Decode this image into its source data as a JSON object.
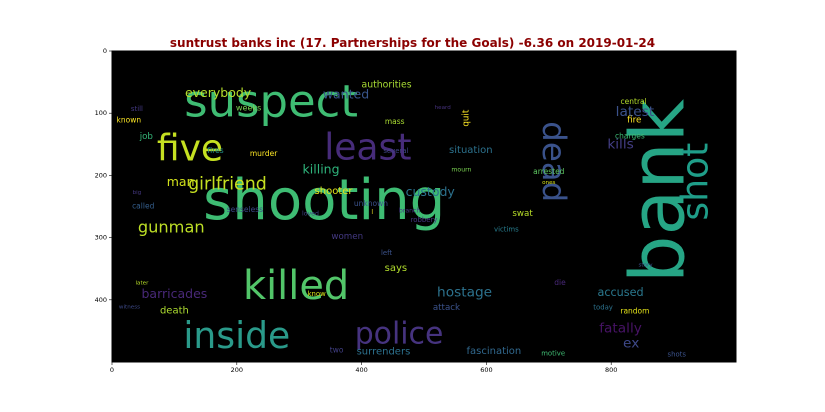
{
  "title": "suntrust banks inc (17. Partnerships for the Goals) -6.36 on 2019-01-24",
  "axes": {
    "x_ticks": [
      "0",
      "200",
      "400",
      "600",
      "800"
    ],
    "y_ticks": [
      "0",
      "100",
      "200",
      "300",
      "400"
    ],
    "x_range": [
      0,
      1000
    ],
    "y_range": [
      0,
      500
    ],
    "background": "#000000"
  },
  "words": [
    {
      "text": "bank",
      "x": 875,
      "y": 225,
      "size": 120,
      "rotate": -90,
      "color": "#26a585"
    },
    {
      "text": "shooting",
      "x": 340,
      "y": 240,
      "size": 90,
      "rotate": 0,
      "color": "#3ebc73"
    },
    {
      "text": "suspect",
      "x": 255,
      "y": 80,
      "size": 72,
      "rotate": 0,
      "color": "#3fbc73"
    },
    {
      "text": "killed",
      "x": 295,
      "y": 378,
      "size": 64,
      "rotate": 0,
      "color": "#52c569"
    },
    {
      "text": "inside",
      "x": 200,
      "y": 458,
      "size": 58,
      "rotate": 0,
      "color": "#2a9a8a"
    },
    {
      "text": "five",
      "x": 125,
      "y": 157,
      "size": 58,
      "rotate": 0,
      "color": "#c5e021"
    },
    {
      "text": "least",
      "x": 410,
      "y": 155,
      "size": 58,
      "rotate": 0,
      "color": "#472c7a"
    },
    {
      "text": "police",
      "x": 460,
      "y": 455,
      "size": 48,
      "rotate": 0,
      "color": "#46337f"
    },
    {
      "text": "dead",
      "x": 708,
      "y": 178,
      "size": 52,
      "rotate": 90,
      "color": "#3a528b"
    },
    {
      "text": "shot",
      "x": 935,
      "y": 210,
      "size": 58,
      "rotate": -90,
      "color": "#1f9e89"
    },
    {
      "text": "girlfriend",
      "x": 185,
      "y": 215,
      "size": 28,
      "rotate": 0,
      "color": "#c5e021"
    },
    {
      "text": "gunman",
      "x": 95,
      "y": 283,
      "size": 26,
      "rotate": 0,
      "color": "#bddf26"
    },
    {
      "text": "everybody",
      "x": 170,
      "y": 67,
      "size": 20,
      "rotate": 0,
      "color": "#b4de2c"
    },
    {
      "text": "man",
      "x": 110,
      "y": 210,
      "size": 20,
      "rotate": 0,
      "color": "#d2e21b"
    },
    {
      "text": "wanted",
      "x": 375,
      "y": 69,
      "size": 20,
      "rotate": 0,
      "color": "#39568c"
    },
    {
      "text": "authorities",
      "x": 440,
      "y": 55,
      "size": 15,
      "rotate": 0,
      "color": "#a8db34"
    },
    {
      "text": "latest",
      "x": 838,
      "y": 98,
      "size": 22,
      "rotate": 0,
      "color": "#3b528b"
    },
    {
      "text": "kills",
      "x": 815,
      "y": 150,
      "size": 22,
      "rotate": 0,
      "color": "#433e85"
    },
    {
      "text": "killing",
      "x": 335,
      "y": 190,
      "size": 20,
      "rotate": 0,
      "color": "#2fb47c"
    },
    {
      "text": "custody",
      "x": 510,
      "y": 226,
      "size": 20,
      "rotate": 0,
      "color": "#2c728e"
    },
    {
      "text": "shooter",
      "x": 355,
      "y": 226,
      "size": 16,
      "rotate": 0,
      "color": "#e5e419"
    },
    {
      "text": "situation",
      "x": 575,
      "y": 160,
      "size": 16,
      "rotate": 0,
      "color": "#2c728e"
    },
    {
      "text": "quit",
      "x": 568,
      "y": 108,
      "size": 14,
      "rotate": -90,
      "color": "#fde725"
    },
    {
      "text": "mass",
      "x": 453,
      "y": 113,
      "size": 12,
      "rotate": 0,
      "color": "#aadc32"
    },
    {
      "text": "fire",
      "x": 837,
      "y": 112,
      "size": 14,
      "rotate": 0,
      "color": "#fde725"
    },
    {
      "text": "central",
      "x": 836,
      "y": 81,
      "size": 12,
      "rotate": 0,
      "color": "#b5de2b"
    },
    {
      "text": "charges",
      "x": 830,
      "y": 137,
      "size": 12,
      "rotate": 0,
      "color": "#3dbc74"
    },
    {
      "text": "weeks",
      "x": 219,
      "y": 91,
      "size": 13,
      "rotate": 0,
      "color": "#7ad151"
    },
    {
      "text": "known",
      "x": 27,
      "y": 111,
      "size": 12,
      "rotate": 0,
      "color": "#fde725"
    },
    {
      "text": "still",
      "x": 40,
      "y": 93,
      "size": 11,
      "rotate": 0,
      "color": "#443983"
    },
    {
      "text": "job",
      "x": 55,
      "y": 138,
      "size": 14,
      "rotate": 0,
      "color": "#35b779"
    },
    {
      "text": "fires",
      "x": 166,
      "y": 160,
      "size": 12,
      "rotate": 0,
      "color": "#21918c"
    },
    {
      "text": "murder",
      "x": 243,
      "y": 165,
      "size": 12,
      "rotate": 0,
      "color": "#fde725"
    },
    {
      "text": "several",
      "x": 455,
      "y": 161,
      "size": 11,
      "rotate": 0,
      "color": "#414487"
    },
    {
      "text": "heard",
      "x": 530,
      "y": 92,
      "size": 9,
      "rotate": 0,
      "color": "#46327e"
    },
    {
      "text": "mourn",
      "x": 560,
      "y": 191,
      "size": 10,
      "rotate": 0,
      "color": "#7ad151"
    },
    {
      "text": "arrested",
      "x": 700,
      "y": 194,
      "size": 12,
      "rotate": 0,
      "color": "#5ec962"
    },
    {
      "text": "ones",
      "x": 700,
      "y": 212,
      "size": 9,
      "rotate": 0,
      "color": "#d8e219"
    },
    {
      "text": "swat",
      "x": 658,
      "y": 262,
      "size": 14,
      "rotate": 0,
      "color": "#b8de29"
    },
    {
      "text": "victims",
      "x": 632,
      "y": 287,
      "size": 11,
      "rotate": 0,
      "color": "#287d8e"
    },
    {
      "text": "unknown",
      "x": 415,
      "y": 245,
      "size": 12,
      "rotate": 0,
      "color": "#3b528b"
    },
    {
      "text": "branch",
      "x": 477,
      "y": 257,
      "size": 10,
      "rotate": 0,
      "color": "#443983"
    },
    {
      "text": "l",
      "x": 417,
      "y": 260,
      "size": 10,
      "rotate": 0,
      "color": "#fde725"
    },
    {
      "text": "loved",
      "x": 318,
      "y": 262,
      "size": 10,
      "rotate": 0,
      "color": "#414487"
    },
    {
      "text": "senseless",
      "x": 213,
      "y": 255,
      "size": 12,
      "rotate": 0,
      "color": "#3e4989"
    },
    {
      "text": "called",
      "x": 50,
      "y": 249,
      "size": 12,
      "rotate": 0,
      "color": "#355f8d"
    },
    {
      "text": "big",
      "x": 40,
      "y": 228,
      "size": 9,
      "rotate": 0,
      "color": "#453882"
    },
    {
      "text": "women",
      "x": 377,
      "y": 299,
      "size": 14,
      "rotate": 0,
      "color": "#443983"
    },
    {
      "text": "left",
      "x": 440,
      "y": 325,
      "size": 11,
      "rotate": 0,
      "color": "#3b528b"
    },
    {
      "text": "says",
      "x": 455,
      "y": 350,
      "size": 16,
      "rotate": 0,
      "color": "#b2dd2d"
    },
    {
      "text": "story",
      "x": 855,
      "y": 345,
      "size": 9,
      "rotate": 0,
      "color": "#3b528b"
    },
    {
      "text": "hostage",
      "x": 565,
      "y": 388,
      "size": 22,
      "rotate": 0,
      "color": "#2c728e"
    },
    {
      "text": "accused",
      "x": 815,
      "y": 388,
      "size": 18,
      "rotate": 0,
      "color": "#2a788e"
    },
    {
      "text": "die",
      "x": 718,
      "y": 372,
      "size": 12,
      "rotate": 0,
      "color": "#482878"
    },
    {
      "text": "barricades",
      "x": 100,
      "y": 390,
      "size": 20,
      "rotate": 0,
      "color": "#482878"
    },
    {
      "text": "later",
      "x": 48,
      "y": 374,
      "size": 9,
      "rotate": 0,
      "color": "#b8de29"
    },
    {
      "text": "witness",
      "x": 28,
      "y": 412,
      "size": 9,
      "rotate": 0,
      "color": "#3e4a89"
    },
    {
      "text": "death",
      "x": 100,
      "y": 418,
      "size": 16,
      "rotate": 0,
      "color": "#addc30"
    },
    {
      "text": "know",
      "x": 328,
      "y": 391,
      "size": 11,
      "rotate": 0,
      "color": "#d8e219"
    },
    {
      "text": "attack",
      "x": 536,
      "y": 413,
      "size": 14,
      "rotate": 0,
      "color": "#3b528b"
    },
    {
      "text": "today",
      "x": 787,
      "y": 412,
      "size": 11,
      "rotate": 0,
      "color": "#2c728e"
    },
    {
      "text": "random",
      "x": 838,
      "y": 418,
      "size": 12,
      "rotate": 0,
      "color": "#e5e419"
    },
    {
      "text": "fatally",
      "x": 815,
      "y": 446,
      "size": 22,
      "rotate": 0,
      "color": "#471365"
    },
    {
      "text": "ex",
      "x": 832,
      "y": 470,
      "size": 22,
      "rotate": 0,
      "color": "#3e4989"
    },
    {
      "text": "two",
      "x": 360,
      "y": 481,
      "size": 12,
      "rotate": 0,
      "color": "#424086"
    },
    {
      "text": "surrenders",
      "x": 435,
      "y": 484,
      "size": 16,
      "rotate": 0,
      "color": "#2c718e"
    },
    {
      "text": "fascination",
      "x": 612,
      "y": 483,
      "size": 16,
      "rotate": 0,
      "color": "#31688e"
    },
    {
      "text": "motive",
      "x": 707,
      "y": 486,
      "size": 11,
      "rotate": 0,
      "color": "#3fbc73"
    },
    {
      "text": "shots",
      "x": 905,
      "y": 488,
      "size": 11,
      "rotate": 0,
      "color": "#3b528b"
    },
    {
      "text": "robbery",
      "x": 500,
      "y": 272,
      "size": 11,
      "rotate": 0,
      "color": "#453781"
    }
  ]
}
